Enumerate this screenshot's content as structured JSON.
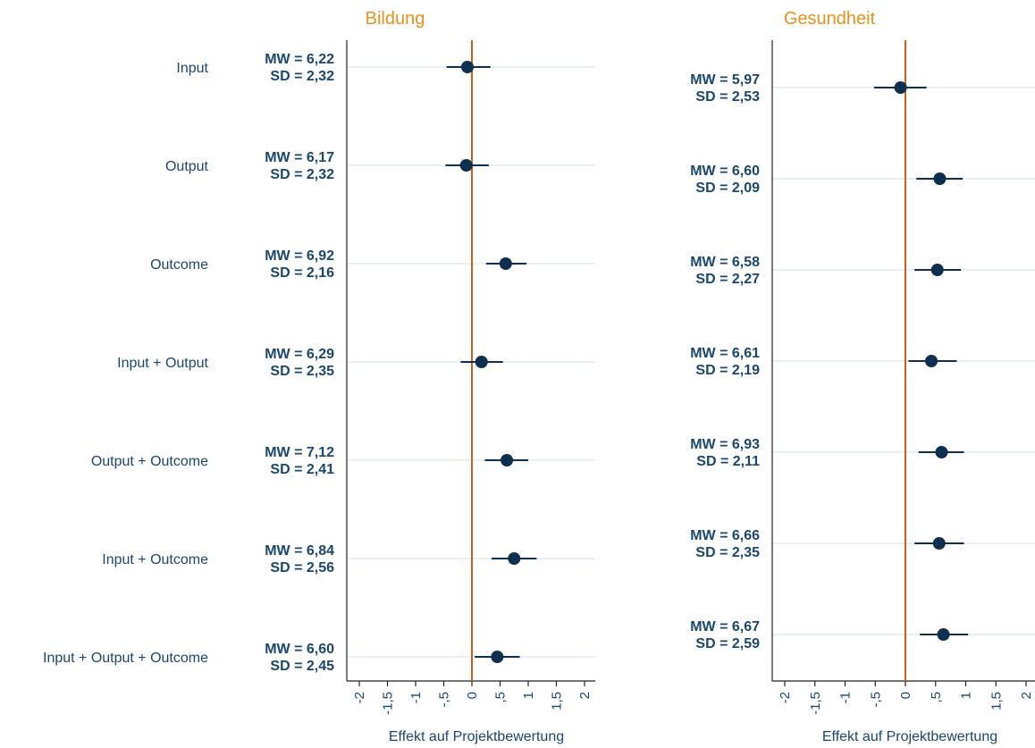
{
  "chart_data": [
    {
      "type": "scatter",
      "title": "Bildung",
      "xlabel": "Effekt auf Projektbewertung",
      "xlim": [
        -2,
        2
      ],
      "xticks": [
        -2,
        -1.5,
        -1,
        -0.5,
        0,
        0.5,
        1,
        1.5,
        2
      ],
      "xtick_labels": [
        "-2",
        "-1,5",
        "-1",
        "-,5",
        "0",
        ",5",
        "1",
        "1,5",
        "2"
      ],
      "reference_line": 0,
      "grid": "horizontal",
      "points": [
        {
          "category": "Input",
          "estimate": -0.08,
          "ci_low": -0.45,
          "ci_high": 0.33,
          "mw": "MW = 6,22",
          "sd": "SD = 2,32"
        },
        {
          "category": "Output",
          "estimate": -0.1,
          "ci_low": -0.47,
          "ci_high": 0.3,
          "mw": "MW = 6,17",
          "sd": "SD = 2,32"
        },
        {
          "category": "Outcome",
          "estimate": 0.6,
          "ci_low": 0.25,
          "ci_high": 0.97,
          "mw": "MW = 6,92",
          "sd": "SD = 2,16"
        },
        {
          "category": "Input + Output",
          "estimate": 0.17,
          "ci_low": -0.2,
          "ci_high": 0.55,
          "mw": "MW = 6,29",
          "sd": "SD = 2,35"
        },
        {
          "category": "Output + Outcome",
          "estimate": 0.62,
          "ci_low": 0.23,
          "ci_high": 1.0,
          "mw": "MW = 7,12",
          "sd": "SD = 2,41"
        },
        {
          "category": "Input + Outcome",
          "estimate": 0.75,
          "ci_low": 0.35,
          "ci_high": 1.15,
          "mw": "MW = 6,84",
          "sd": "SD = 2,56"
        },
        {
          "category": "Input + Output + Outcome",
          "estimate": 0.45,
          "ci_low": 0.05,
          "ci_high": 0.85,
          "mw": "MW = 6,60",
          "sd": "SD = 2,45"
        }
      ]
    },
    {
      "type": "scatter",
      "title": "Gesundheit",
      "xlabel": "Effekt auf Projektbewertung",
      "xlim": [
        -2,
        2
      ],
      "xticks": [
        -2,
        -1.5,
        -1,
        -0.5,
        0,
        0.5,
        1,
        1.5,
        2
      ],
      "xtick_labels": [
        "-2",
        "-1,5",
        "-1",
        "-,5",
        "0",
        ",5",
        "1",
        "1,5",
        "2"
      ],
      "reference_line": 0,
      "grid": "horizontal",
      "points": [
        {
          "estimate": -0.08,
          "ci_low": -0.52,
          "ci_high": 0.35,
          "mw": "MW = 5,97",
          "sd": "SD = 2,53"
        },
        {
          "estimate": 0.57,
          "ci_low": 0.18,
          "ci_high": 0.95,
          "mw": "MW = 6,60",
          "sd": "SD = 2,09"
        },
        {
          "estimate": 0.53,
          "ci_low": 0.15,
          "ci_high": 0.92,
          "mw": "MW = 6,58",
          "sd": "SD = 2,27"
        },
        {
          "estimate": 0.43,
          "ci_low": 0.05,
          "ci_high": 0.85,
          "mw": "MW = 6,61",
          "sd": "SD = 2,19"
        },
        {
          "estimate": 0.6,
          "ci_low": 0.22,
          "ci_high": 0.97,
          "mw": "MW = 6,93",
          "sd": "SD = 2,11"
        },
        {
          "estimate": 0.56,
          "ci_low": 0.15,
          "ci_high": 0.97,
          "mw": "MW = 6,66",
          "sd": "SD = 2,35"
        },
        {
          "estimate": 0.63,
          "ci_low": 0.24,
          "ci_high": 1.04,
          "mw": "MW = 6,67",
          "sd": "SD = 2,59"
        }
      ]
    }
  ],
  "colors": {
    "marker": "#0e2f4f",
    "text": "#1a476f",
    "title": "#e8921c",
    "reference_line": "#c9611c",
    "grid": "#e9f0f3",
    "axis": "#222222"
  }
}
